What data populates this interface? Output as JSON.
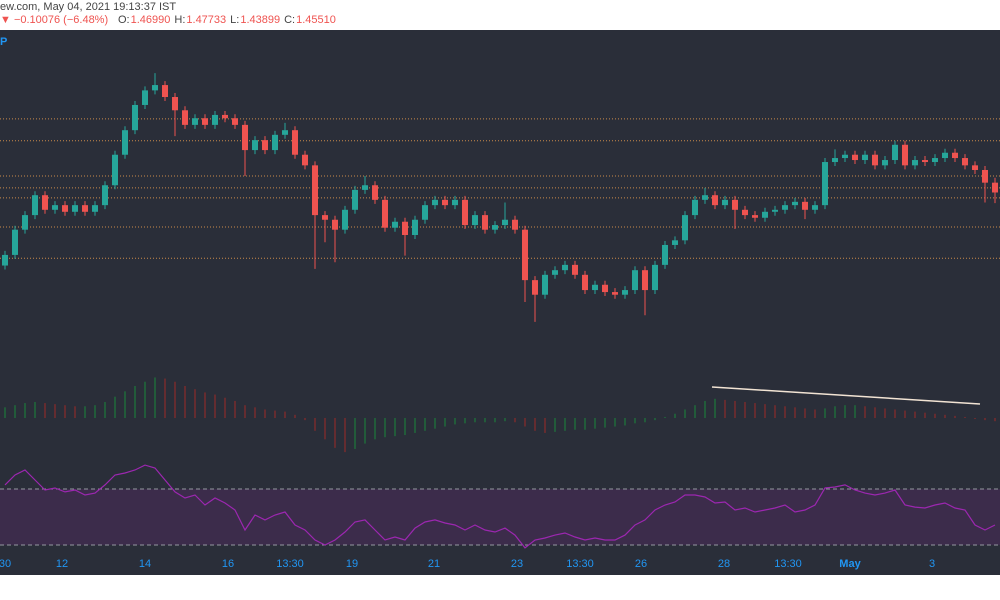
{
  "header": {
    "source": "ew.com, May 04, 2021 19:13:37 IST",
    "symbol_fragment": "P",
    "change": "▼ −0.10076 (−6.48%)",
    "ohlc": [
      {
        "label": "O:",
        "value": "1.46990"
      },
      {
        "label": "H:",
        "value": "1.47733"
      },
      {
        "label": "L:",
        "value": "1.43899"
      },
      {
        "label": "C:",
        "value": "1.45510"
      }
    ]
  },
  "chart_data": {
    "type": "candlestick",
    "open": [
      1.345,
      1.361,
      1.399,
      1.421,
      1.451,
      1.429,
      1.436,
      1.426,
      1.436,
      1.426,
      1.436,
      1.466,
      1.512,
      1.549,
      1.587,
      1.609,
      1.617,
      1.599,
      1.579,
      1.557,
      1.567,
      1.557,
      1.572,
      1.567,
      1.557,
      1.519,
      1.534,
      1.519,
      1.542,
      1.549,
      1.512,
      1.496,
      1.421,
      1.414,
      1.399,
      1.429,
      1.459,
      1.466,
      1.444,
      1.402,
      1.411,
      1.391,
      1.414,
      1.436,
      1.444,
      1.436,
      1.444,
      1.406,
      1.421,
      1.399,
      1.406,
      1.414,
      1.399,
      1.323,
      1.301,
      1.331,
      1.338,
      1.346,
      1.331,
      1.308,
      1.316,
      1.305,
      1.301,
      1.308,
      1.338,
      1.308,
      1.346,
      1.376,
      1.383,
      1.421,
      1.444,
      1.451,
      1.436,
      1.444,
      1.429,
      1.421,
      1.417,
      1.426,
      1.429,
      1.436,
      1.441,
      1.429,
      1.436,
      1.501,
      1.507,
      1.512,
      1.504,
      1.512,
      1.496,
      1.504,
      1.527,
      1.496,
      1.504,
      1.501,
      1.507,
      1.515,
      1.507,
      1.496,
      1.489,
      1.4699
    ],
    "high": [
      1.367,
      1.405,
      1.427,
      1.457,
      1.457,
      1.442,
      1.442,
      1.442,
      1.442,
      1.442,
      1.472,
      1.518,
      1.555,
      1.593,
      1.615,
      1.635,
      1.623,
      1.605,
      1.585,
      1.573,
      1.573,
      1.578,
      1.578,
      1.573,
      1.563,
      1.54,
      1.54,
      1.548,
      1.56,
      1.555,
      1.518,
      1.502,
      1.427,
      1.42,
      1.435,
      1.465,
      1.48,
      1.472,
      1.45,
      1.417,
      1.417,
      1.42,
      1.442,
      1.45,
      1.45,
      1.45,
      1.45,
      1.427,
      1.427,
      1.412,
      1.44,
      1.42,
      1.405,
      1.329,
      1.337,
      1.344,
      1.352,
      1.352,
      1.337,
      1.322,
      1.322,
      1.311,
      1.314,
      1.344,
      1.344,
      1.352,
      1.382,
      1.389,
      1.427,
      1.45,
      1.462,
      1.457,
      1.45,
      1.45,
      1.435,
      1.427,
      1.432,
      1.435,
      1.442,
      1.447,
      1.447,
      1.442,
      1.507,
      1.52,
      1.518,
      1.518,
      1.518,
      1.518,
      1.51,
      1.533,
      1.533,
      1.51,
      1.51,
      1.513,
      1.521,
      1.521,
      1.513,
      1.502,
      1.495,
      1.47733
    ],
    "low": [
      1.339,
      1.355,
      1.393,
      1.415,
      1.423,
      1.423,
      1.42,
      1.42,
      1.42,
      1.42,
      1.43,
      1.46,
      1.506,
      1.543,
      1.581,
      1.603,
      1.593,
      1.54,
      1.551,
      1.551,
      1.551,
      1.551,
      1.561,
      1.551,
      1.48,
      1.513,
      1.513,
      1.513,
      1.536,
      1.506,
      1.49,
      1.34,
      1.38,
      1.35,
      1.393,
      1.423,
      1.453,
      1.438,
      1.396,
      1.396,
      1.36,
      1.385,
      1.408,
      1.43,
      1.43,
      1.43,
      1.4,
      1.4,
      1.393,
      1.393,
      1.4,
      1.393,
      1.29,
      1.26,
      1.295,
      1.325,
      1.332,
      1.325,
      1.302,
      1.302,
      1.299,
      1.295,
      1.295,
      1.302,
      1.27,
      1.302,
      1.34,
      1.37,
      1.377,
      1.415,
      1.438,
      1.43,
      1.43,
      1.4,
      1.415,
      1.411,
      1.411,
      1.42,
      1.423,
      1.43,
      1.415,
      1.423,
      1.43,
      1.495,
      1.501,
      1.498,
      1.498,
      1.49,
      1.49,
      1.498,
      1.49,
      1.49,
      1.495,
      1.495,
      1.501,
      1.501,
      1.49,
      1.483,
      1.44,
      1.43899
    ],
    "close": [
      1.361,
      1.399,
      1.421,
      1.451,
      1.429,
      1.436,
      1.426,
      1.436,
      1.426,
      1.436,
      1.466,
      1.512,
      1.549,
      1.587,
      1.609,
      1.617,
      1.599,
      1.579,
      1.557,
      1.567,
      1.557,
      1.572,
      1.567,
      1.557,
      1.519,
      1.534,
      1.519,
      1.542,
      1.549,
      1.512,
      1.496,
      1.421,
      1.414,
      1.399,
      1.429,
      1.459,
      1.466,
      1.444,
      1.402,
      1.411,
      1.391,
      1.414,
      1.436,
      1.444,
      1.436,
      1.444,
      1.406,
      1.421,
      1.399,
      1.406,
      1.414,
      1.399,
      1.323,
      1.301,
      1.331,
      1.338,
      1.346,
      1.331,
      1.308,
      1.316,
      1.305,
      1.301,
      1.308,
      1.338,
      1.308,
      1.346,
      1.376,
      1.383,
      1.421,
      1.444,
      1.451,
      1.436,
      1.444,
      1.429,
      1.421,
      1.417,
      1.426,
      1.429,
      1.436,
      1.441,
      1.429,
      1.436,
      1.501,
      1.507,
      1.512,
      1.504,
      1.512,
      1.496,
      1.504,
      1.527,
      1.496,
      1.504,
      1.501,
      1.507,
      1.515,
      1.507,
      1.496,
      1.489,
      1.4699,
      1.4551
    ],
    "up_color": "#26a69a",
    "down_color": "#ef5350",
    "ylim": [
      1.18,
      1.7
    ],
    "levels": [
      1.566,
      1.533,
      1.48,
      1.462,
      1.447,
      1.403,
      1.356
    ],
    "level_color": "#c98a4b",
    "xticks": [
      {
        "value": 0,
        "label": "30"
      },
      {
        "value": 5.7,
        "label": "12"
      },
      {
        "value": 14,
        "label": "14"
      },
      {
        "value": 22.3,
        "label": "16"
      },
      {
        "value": 28.5,
        "label": "13:30"
      },
      {
        "value": 34.7,
        "label": "19"
      },
      {
        "value": 42.9,
        "label": "21"
      },
      {
        "value": 51.2,
        "label": "23"
      },
      {
        "value": 57.5,
        "label": "13:30"
      },
      {
        "value": 63.6,
        "label": "26"
      },
      {
        "value": 71.9,
        "label": "28"
      },
      {
        "value": 78.3,
        "label": "13:30"
      },
      {
        "value": 84.5,
        "label": "May"
      },
      {
        "value": 92.7,
        "label": "3"
      }
    ],
    "macd": {
      "values": [
        0.01,
        0.012,
        0.014,
        0.015,
        0.014,
        0.013,
        0.012,
        0.011,
        0.011,
        0.012,
        0.015,
        0.02,
        0.025,
        0.03,
        0.034,
        0.038,
        0.037,
        0.034,
        0.03,
        0.027,
        0.024,
        0.022,
        0.019,
        0.016,
        0.012,
        0.01,
        0.008,
        0.007,
        0.006,
        0.003,
        -0.002,
        -0.012,
        -0.02,
        -0.028,
        -0.032,
        -0.029,
        -0.024,
        -0.02,
        -0.018,
        -0.017,
        -0.016,
        -0.014,
        -0.012,
        -0.01,
        -0.008,
        -0.006,
        -0.005,
        -0.004,
        -0.004,
        -0.004,
        -0.003,
        -0.004,
        -0.008,
        -0.012,
        -0.014,
        -0.013,
        -0.012,
        -0.011,
        -0.011,
        -0.01,
        -0.009,
        -0.008,
        -0.007,
        -0.005,
        -0.004,
        -0.002,
        0.001,
        0.004,
        0.008,
        0.012,
        0.016,
        0.018,
        0.017,
        0.016,
        0.015,
        0.014,
        0.013,
        0.012,
        0.011,
        0.01,
        0.009,
        0.008,
        0.009,
        0.011,
        0.012,
        0.012,
        0.011,
        0.01,
        0.009,
        0.008,
        0.007,
        0.006,
        0.005,
        0.004,
        0.003,
        0.002,
        0.001,
        -0.001,
        -0.002,
        -0.003
      ],
      "ylim": [
        -0.045,
        0.045
      ],
      "up_color": "#1e7a3c",
      "down_color": "#8a2b2b"
    },
    "rsi": {
      "values": [
        72.9,
        80.0,
        83.6,
        76.4,
        69.3,
        70.7,
        67.9,
        69.3,
        65.7,
        67.1,
        72.9,
        80.0,
        81.4,
        83.6,
        87.1,
        85.0,
        76.4,
        67.9,
        63.6,
        65.7,
        58.6,
        63.6,
        60.0,
        55.0,
        40.7,
        51.4,
        47.9,
        51.4,
        53.6,
        44.3,
        40.7,
        33.6,
        30.0,
        33.6,
        39.3,
        46.4,
        47.9,
        40.7,
        33.6,
        35.7,
        33.6,
        42.1,
        46.4,
        47.9,
        45.7,
        44.3,
        40.7,
        44.3,
        40.7,
        39.3,
        42.1,
        37.1,
        27.9,
        33.6,
        35.0,
        37.1,
        38.6,
        35.7,
        33.6,
        35.0,
        33.6,
        33.6,
        37.1,
        44.3,
        47.9,
        55.0,
        58.6,
        60.7,
        65.7,
        65.7,
        64.3,
        60.0,
        60.7,
        55.0,
        56.4,
        53.6,
        55.0,
        56.4,
        58.6,
        53.6,
        55.0,
        58.6,
        70.7,
        71.4,
        72.9,
        69.3,
        67.1,
        65.7,
        67.1,
        69.3,
        58.6,
        57.1,
        56.4,
        58.6,
        60.0,
        56.4,
        55.0,
        44.3,
        40.7,
        44.3
      ],
      "ylim": [
        10,
        90
      ],
      "bands": [
        30,
        70
      ],
      "color": "#9c27b0",
      "band_color": "#9c27b0"
    }
  }
}
